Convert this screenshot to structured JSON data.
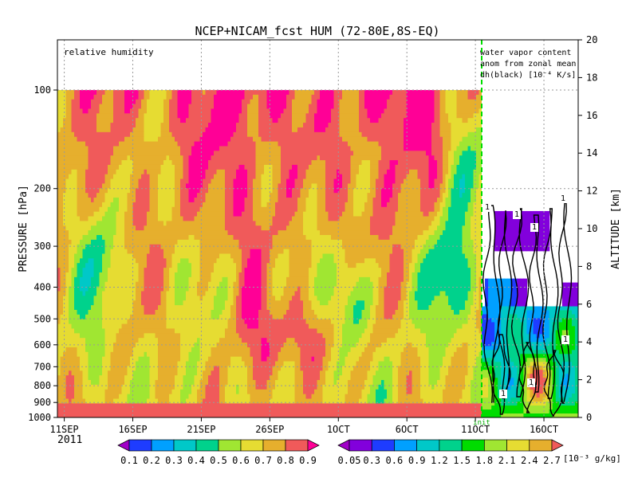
{
  "chart_data": {
    "type": "heatmap",
    "title": "NCEP+NICAM_fcst HUM (72-80E,8S-EQ)",
    "left_panel_label": "relative humidity",
    "right_panel_label_lines": [
      "water vapor content",
      "anom from zonal mean",
      "dh(black) [10⁻⁴ K/s]"
    ],
    "ylabel_left": "PRESSURE [hPa]",
    "ylabel_right": "ALTITUDE [km]",
    "pressure_ticks": [
      "100",
      "200",
      "300",
      "400",
      "500",
      "600",
      "700",
      "800",
      "900",
      "1000"
    ],
    "pressure_values": [
      100,
      200,
      300,
      400,
      500,
      600,
      700,
      800,
      900,
      1000
    ],
    "altitude_ticks": [
      "0",
      "2",
      "4",
      "6",
      "8",
      "10",
      "12",
      "14",
      "16",
      "18",
      "20"
    ],
    "altitude_values": [
      0,
      2,
      4,
      6,
      8,
      10,
      12,
      14,
      16,
      18,
      20
    ],
    "altitude_range_km": [
      0,
      20
    ],
    "x_labels": [
      "11SEP",
      "16SEP",
      "21SEP",
      "26SEP",
      "1OCT",
      "6OCT",
      "11OCT",
      "16OCT"
    ],
    "x_year": "2011",
    "x_day_index": [
      0,
      5,
      10,
      15,
      20,
      25,
      30,
      35
    ],
    "init_label": "init",
    "init_day_index": 29,
    "x_range_days": [
      -0.5,
      37.5
    ],
    "grid": true,
    "contour_label": "1",
    "rh_scale": {
      "labels": [
        "0.1",
        "0.2",
        "0.3",
        "0.4",
        "0.5",
        "0.6",
        "0.7",
        "0.8",
        "0.9"
      ],
      "levels": [
        0.1,
        0.2,
        0.3,
        0.4,
        0.5,
        0.6,
        0.7,
        0.8,
        0.9
      ],
      "colors": [
        "#a000c8",
        "#1e3cff",
        "#00a0ff",
        "#00c8c8",
        "#00d28c",
        "#a0e632",
        "#e6dc32",
        "#e6af2d",
        "#f05a5a",
        "#ff0096"
      ]
    },
    "wv_scale": {
      "labels": [
        "0.05",
        "0.3",
        "0.6",
        "0.9",
        "1.2",
        "1.5",
        "1.8",
        "2.1",
        "2.4",
        "2.7"
      ],
      "levels": [
        0.05,
        0.3,
        0.6,
        0.9,
        1.2,
        1.5,
        1.8,
        2.1,
        2.4,
        2.7
      ],
      "unit": "[10⁻³ g/kg]",
      "colors": [
        "#a000c8",
        "#8200dc",
        "#1e3cff",
        "#00a0ff",
        "#00c8c8",
        "#00d28c",
        "#00dc00",
        "#a0e632",
        "#e6dc32",
        "#e6af2d",
        "#f05a5a"
      ]
    }
  }
}
